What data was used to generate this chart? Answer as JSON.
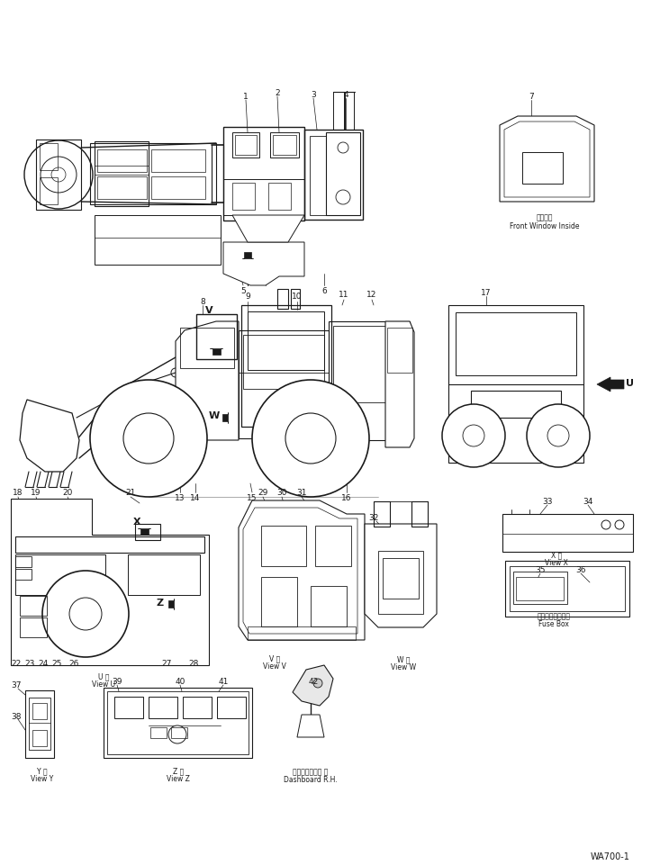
{
  "bg_color": "#ffffff",
  "fig_width": 7.33,
  "fig_height": 9.62,
  "dpi": 100,
  "watermark": "WA700-1",
  "line_color": "#1a1a1a",
  "text_color": "#1a1a1a",
  "labels": {
    "front_window": "Front Window Inside",
    "front_window_jp": "前窓内側",
    "view_u_jp": "U 正",
    "view_u": "View U",
    "view_v_jp": "V 正",
    "view_v": "View V",
    "view_w_jp": "W 正",
    "view_w": "View W",
    "view_x_jp": "X 正",
    "view_x": "View X",
    "view_y_jp": "Y 正",
    "view_y": "View Y",
    "view_z_jp": "Z 正",
    "view_z": "View Z",
    "fuse_box_jp": "ヒューズボックス",
    "fuse_box": "Fuse Box",
    "dashboard_jp": "ダッシュボード 右",
    "dashboard": "Dashboard R.H."
  }
}
